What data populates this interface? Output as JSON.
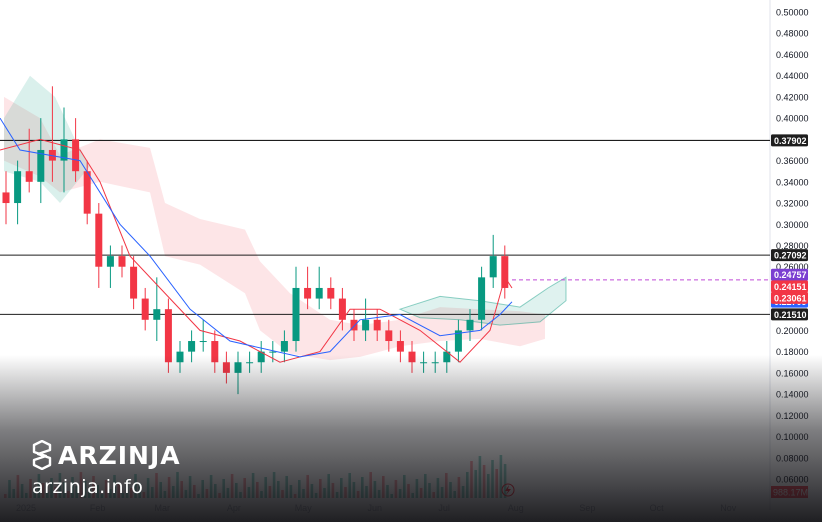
{
  "chart_data": {
    "type": "candlestick",
    "y_axis": {
      "range": [
        0.04,
        0.5
      ],
      "ticks": [
        "0.50000",
        "0.48000",
        "0.46000",
        "0.44000",
        "0.42000",
        "0.40000",
        "0.36000",
        "0.34000",
        "0.32000",
        "0.30000",
        "0.28000",
        "0.26000",
        "0.20000",
        "0.18000",
        "0.16000",
        "0.14000",
        "0.12000",
        "0.10000",
        "0.08000",
        "0.06000"
      ],
      "tick_values": [
        0.5,
        0.48,
        0.46,
        0.44,
        0.42,
        0.4,
        0.36,
        0.34,
        0.32,
        0.3,
        0.28,
        0.26,
        0.2,
        0.18,
        0.16,
        0.14,
        0.12,
        0.1,
        0.08,
        0.06
      ]
    },
    "x_axis": {
      "labels": [
        "2025",
        "Feb",
        "Mar",
        "Apr",
        "May",
        "Jun",
        "Jul",
        "Aug",
        "Sep",
        "Oct",
        "Nov"
      ],
      "label_positions": [
        0.0,
        31,
        59,
        90,
        120,
        151,
        181,
        212,
        243,
        273,
        304
      ]
    },
    "horizontal_levels": [
      {
        "value": 0.37902,
        "label": "0.37902"
      },
      {
        "value": 0.27092,
        "label": "0.27092"
      },
      {
        "value": 0.2151,
        "label": "0.21510"
      }
    ],
    "price_tags": [
      {
        "value": 0.24757,
        "label": "0.24757",
        "color": "#7b3fd1"
      },
      {
        "value": 0.24151,
        "label": "0.24151",
        "color": "#f23645"
      },
      {
        "value": 0.22709,
        "label": "0.22709",
        "color": "#2962ff"
      },
      {
        "value": 0.23061,
        "label": "0.23061",
        "color": "#f23645"
      },
      {
        "value": 0.2151,
        "label": "0.21510",
        "color": "#1e1e1e"
      }
    ],
    "current_price": 0.24151,
    "volume_label": "988.17M",
    "ohlc_weekly": [
      [
        0.33,
        0.35,
        0.3,
        0.32
      ],
      [
        0.32,
        0.36,
        0.3,
        0.35
      ],
      [
        0.35,
        0.39,
        0.33,
        0.34
      ],
      [
        0.34,
        0.4,
        0.32,
        0.37
      ],
      [
        0.37,
        0.43,
        0.34,
        0.36
      ],
      [
        0.36,
        0.41,
        0.33,
        0.38
      ],
      [
        0.38,
        0.4,
        0.34,
        0.35
      ],
      [
        0.35,
        0.36,
        0.3,
        0.31
      ],
      [
        0.31,
        0.32,
        0.24,
        0.26
      ],
      [
        0.26,
        0.28,
        0.24,
        0.27
      ],
      [
        0.27,
        0.28,
        0.25,
        0.26
      ],
      [
        0.26,
        0.27,
        0.22,
        0.23
      ],
      [
        0.23,
        0.24,
        0.2,
        0.21
      ],
      [
        0.21,
        0.25,
        0.19,
        0.22
      ],
      [
        0.22,
        0.23,
        0.16,
        0.17
      ],
      [
        0.17,
        0.19,
        0.16,
        0.18
      ],
      [
        0.18,
        0.2,
        0.17,
        0.19
      ],
      [
        0.19,
        0.21,
        0.18,
        0.19
      ],
      [
        0.19,
        0.2,
        0.16,
        0.17
      ],
      [
        0.17,
        0.18,
        0.15,
        0.16
      ],
      [
        0.16,
        0.18,
        0.14,
        0.17
      ],
      [
        0.17,
        0.18,
        0.16,
        0.17
      ],
      [
        0.17,
        0.19,
        0.16,
        0.18
      ],
      [
        0.18,
        0.19,
        0.17,
        0.18
      ],
      [
        0.18,
        0.2,
        0.17,
        0.19
      ],
      [
        0.19,
        0.26,
        0.18,
        0.24
      ],
      [
        0.24,
        0.26,
        0.22,
        0.23
      ],
      [
        0.23,
        0.26,
        0.22,
        0.24
      ],
      [
        0.24,
        0.25,
        0.22,
        0.23
      ],
      [
        0.23,
        0.24,
        0.2,
        0.21
      ],
      [
        0.21,
        0.22,
        0.19,
        0.2
      ],
      [
        0.2,
        0.23,
        0.19,
        0.21
      ],
      [
        0.21,
        0.22,
        0.19,
        0.2
      ],
      [
        0.2,
        0.21,
        0.18,
        0.19
      ],
      [
        0.19,
        0.2,
        0.17,
        0.18
      ],
      [
        0.18,
        0.19,
        0.16,
        0.17
      ],
      [
        0.17,
        0.18,
        0.16,
        0.17
      ],
      [
        0.17,
        0.18,
        0.16,
        0.17
      ],
      [
        0.17,
        0.19,
        0.16,
        0.18
      ],
      [
        0.18,
        0.21,
        0.17,
        0.2
      ],
      [
        0.2,
        0.22,
        0.19,
        0.21
      ],
      [
        0.21,
        0.26,
        0.2,
        0.25
      ],
      [
        0.25,
        0.29,
        0.24,
        0.27
      ],
      [
        0.27,
        0.28,
        0.23,
        0.24
      ]
    ]
  }
}
